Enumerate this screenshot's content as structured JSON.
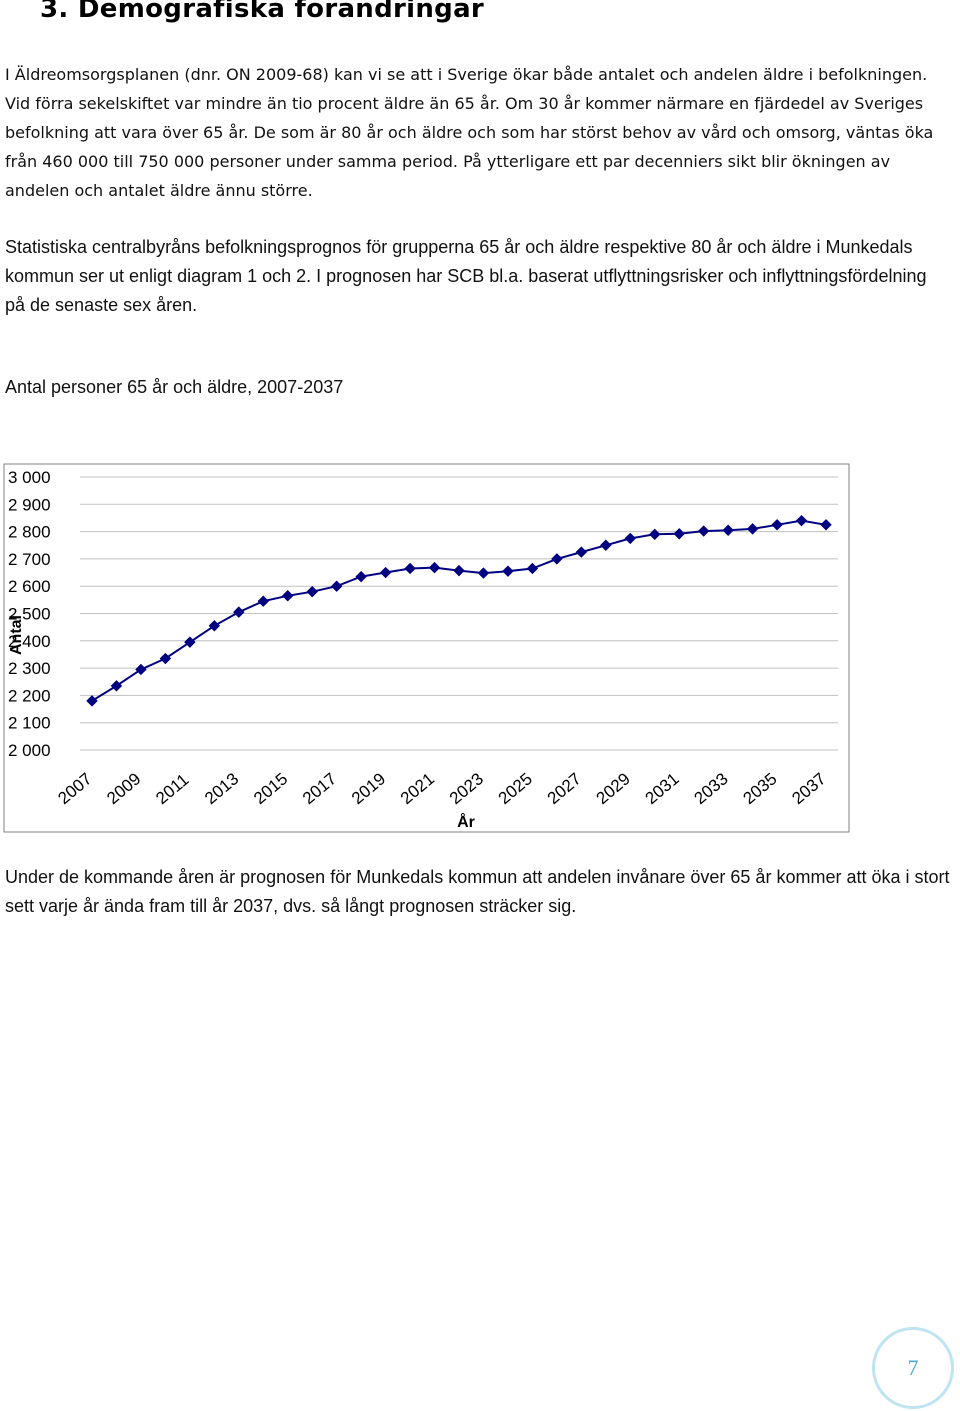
{
  "heading": "3. Demografiska förändringar",
  "paragraphs": {
    "intro": "I Äldreomsorgsplanen (dnr. ON 2009-68) kan vi se att i Sverige ökar både antalet och andelen äldre i befolkningen. Vid förra sekelskiftet var mindre än tio procent äldre än 65 år. Om 30 år kommer närmare en fjärdedel av Sveriges befolkning att vara över 65 år. De som är 80 år och äldre och som har störst behov av vård och omsorg, väntas öka från 460 000 till 750 000 personer under samma period. På ytterligare ett par decenniers sikt blir ökningen av andelen och antalet äldre ännu större.",
    "scb": "Statistiska centralbyråns befolkningsprognos för grupperna 65 år och äldre respektive 80 år och äldre i Munkedals kommun ser ut enligt diagram 1 och 2. I prognosen har SCB bl.a. baserat utflyttningsrisker och inflyttningsfördelning på de senaste sex åren.",
    "conclusion": "Under de kommande åren är prognosen för Munkedals kommun att andelen invånare över 65 år kommer att öka i stort sett varje år ända fram till år 2037, dvs. så långt prognosen sträcker sig."
  },
  "chart_title": "Antal personer 65 år och äldre, 2007-2037",
  "page_number": "7",
  "colors": {
    "series": "#000080",
    "grid": "#c0c0c0",
    "page_circle": "#bfe3f0",
    "page_number": "#4aa8cc"
  },
  "chart_data": {
    "type": "line",
    "xlabel": "År",
    "ylabel": "Antal",
    "ylim": [
      2000,
      3000
    ],
    "yticks": [
      2000,
      2100,
      2200,
      2300,
      2400,
      2500,
      2600,
      2700,
      2800,
      2900,
      3000
    ],
    "ytick_labels": [
      "2 000",
      "2 100",
      "2 200",
      "2 300",
      "2 400",
      "2 500",
      "2 600",
      "2 700",
      "2 800",
      "2 900",
      "3 000"
    ],
    "xtick_labels": [
      "2007",
      "2009",
      "2011",
      "2013",
      "2015",
      "2017",
      "2019",
      "2021",
      "2023",
      "2025",
      "2027",
      "2029",
      "2031",
      "2033",
      "2035",
      "2037"
    ],
    "grid": "horizontal",
    "marker": "diamond",
    "x": [
      2007,
      2008,
      2009,
      2010,
      2011,
      2012,
      2013,
      2014,
      2015,
      2016,
      2017,
      2018,
      2019,
      2020,
      2021,
      2022,
      2023,
      2024,
      2025,
      2026,
      2027,
      2028,
      2029,
      2030,
      2031,
      2032,
      2033,
      2034,
      2035,
      2036,
      2037
    ],
    "values": [
      2180,
      2235,
      2295,
      2335,
      2395,
      2455,
      2505,
      2545,
      2565,
      2580,
      2600,
      2635,
      2650,
      2665,
      2668,
      2657,
      2648,
      2655,
      2665,
      2700,
      2725,
      2750,
      2775,
      2790,
      2792,
      2802,
      2805,
      2810,
      2825,
      2840,
      2825
    ]
  }
}
